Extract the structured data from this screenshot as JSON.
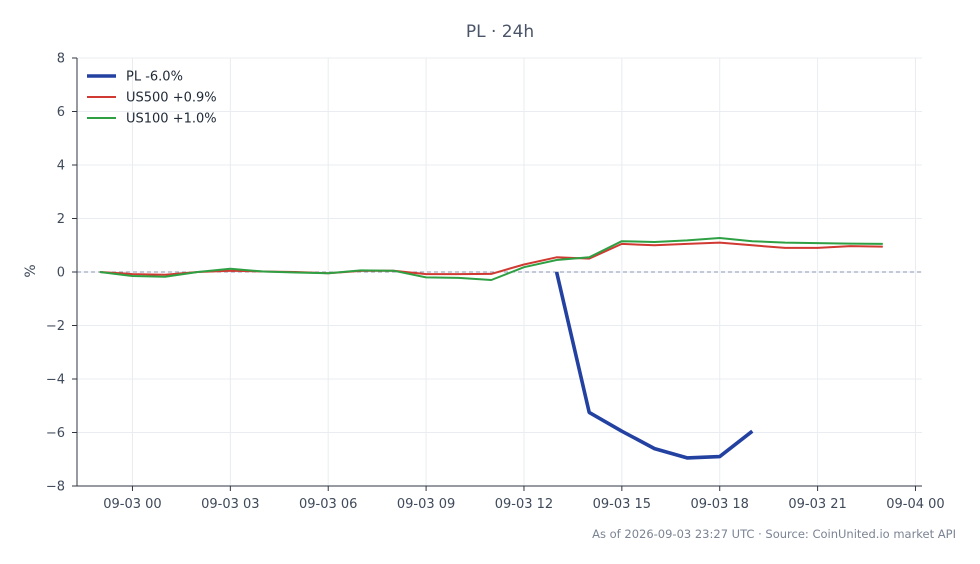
{
  "chart_data": {
    "type": "line",
    "title": "PL · 24h",
    "ylabel": "%",
    "xlabel": "",
    "ylim": [
      -8,
      8
    ],
    "yticks": [
      8,
      6,
      4,
      2,
      0,
      -2,
      -4,
      -6,
      -8
    ],
    "ytick_labels": [
      "8",
      "6",
      "4",
      "2",
      "0",
      "−2",
      "−4",
      "−6",
      "−8"
    ],
    "xlim_hours": [
      -1.7,
      24.2
    ],
    "xticks": [
      0,
      3,
      6,
      9,
      12,
      15,
      18,
      21,
      24
    ],
    "xtick_labels": [
      "09-03 00",
      "09-03 03",
      "09-03 06",
      "09-03 09",
      "09-03 12",
      "09-03 15",
      "09-03 18",
      "09-03 21",
      "09-04 00"
    ],
    "zero_line": true,
    "grid": true,
    "legend_position": "top-left",
    "series": [
      {
        "name": "PL -6.0%",
        "color": "#2341a0",
        "x": [
          13,
          14,
          15,
          16,
          17,
          18,
          19
        ],
        "y": [
          0.0,
          -5.25,
          -5.95,
          -6.6,
          -6.95,
          -6.9,
          -5.95
        ]
      },
      {
        "name": "US500 +0.9%",
        "color": "#d03a32",
        "x": [
          -1,
          0,
          1,
          2,
          3,
          4,
          5,
          6,
          7,
          8,
          9,
          10,
          11,
          12,
          13,
          14,
          15,
          16,
          17,
          18,
          19,
          20,
          21,
          22,
          23
        ],
        "y": [
          0.0,
          -0.08,
          -0.1,
          0.0,
          0.05,
          0.02,
          0.0,
          -0.05,
          0.04,
          0.05,
          -0.08,
          -0.08,
          -0.07,
          0.28,
          0.55,
          0.5,
          1.05,
          1.0,
          1.05,
          1.1,
          1.0,
          0.9,
          0.9,
          0.97,
          0.95
        ]
      },
      {
        "name": "US100 +1.0%",
        "color": "#2ea043",
        "x": [
          -1,
          0,
          1,
          2,
          3,
          4,
          5,
          6,
          7,
          8,
          9,
          10,
          11,
          12,
          13,
          14,
          15,
          16,
          17,
          18,
          19,
          20,
          21,
          22,
          23
        ],
        "y": [
          0.0,
          -0.15,
          -0.18,
          0.0,
          0.12,
          0.02,
          -0.02,
          -0.05,
          0.06,
          0.05,
          -0.2,
          -0.22,
          -0.3,
          0.18,
          0.45,
          0.55,
          1.15,
          1.12,
          1.18,
          1.27,
          1.15,
          1.1,
          1.08,
          1.06,
          1.05
        ]
      }
    ]
  },
  "footer": "As of 2026-09-03 23:27 UTC · Source: CoinUnited.io market API"
}
